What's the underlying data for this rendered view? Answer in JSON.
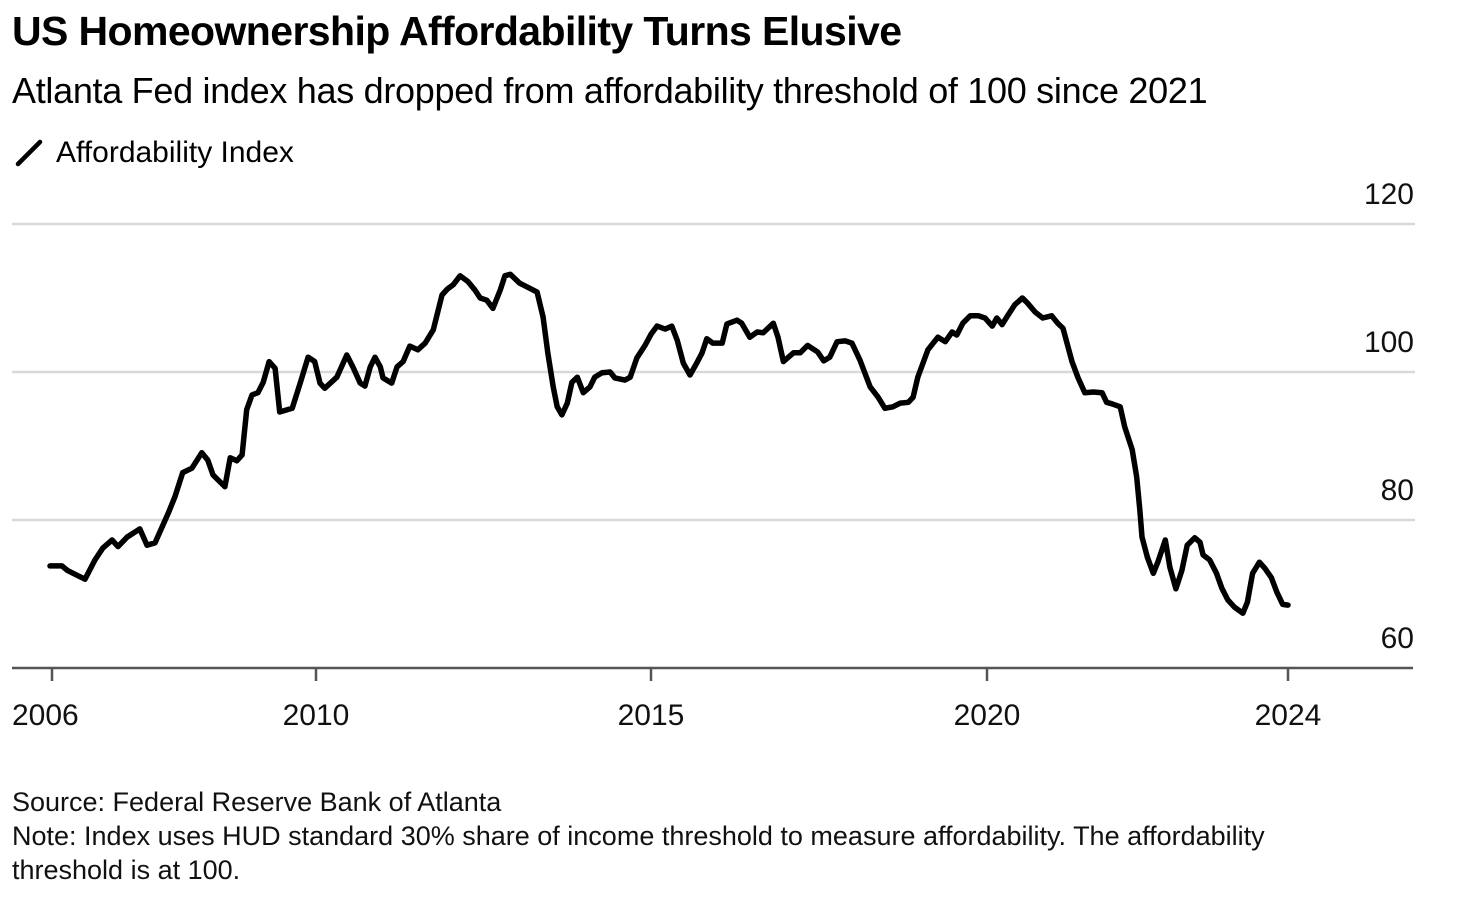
{
  "chart_data": {
    "type": "line",
    "title": "US Homeownership Affordability Turns Elusive",
    "subtitle": "Atlanta Fed index has dropped from affordability threshold of 100 since 2021",
    "xlabel": "",
    "ylabel": "",
    "xlim": [
      2006,
      2024
    ],
    "ylim": [
      60,
      120
    ],
    "grid": true,
    "y_axis_side": "right",
    "legend_position": "top-left",
    "x_ticks": [
      {
        "value": 2006,
        "label": "2006"
      },
      {
        "value": 2010,
        "label": "2010"
      },
      {
        "value": 2015,
        "label": "2015"
      },
      {
        "value": 2020,
        "label": "2020"
      },
      {
        "value": 2024,
        "label": "2024"
      }
    ],
    "y_ticks": [
      {
        "value": 120,
        "label": "120"
      },
      {
        "value": 100,
        "label": "100"
      },
      {
        "value": 80,
        "label": "80"
      },
      {
        "value": 60,
        "label": "60"
      }
    ],
    "series": [
      {
        "name": "Affordability Index",
        "color": "#000000",
        "points": [
          [
            2005.97,
            73.8
          ],
          [
            2006.15,
            73.8
          ],
          [
            2006.23,
            73.2
          ],
          [
            2006.32,
            72.8
          ],
          [
            2006.5,
            72.0
          ],
          [
            2006.65,
            74.6
          ],
          [
            2006.77,
            76.2
          ],
          [
            2006.91,
            77.3
          ],
          [
            2007.0,
            76.4
          ],
          [
            2007.14,
            77.7
          ],
          [
            2007.33,
            78.8
          ],
          [
            2007.44,
            76.6
          ],
          [
            2007.56,
            76.9
          ],
          [
            2007.67,
            79.1
          ],
          [
            2007.76,
            80.9
          ],
          [
            2007.86,
            83.1
          ],
          [
            2007.98,
            86.4
          ],
          [
            2008.12,
            87.0
          ],
          [
            2008.27,
            89.1
          ],
          [
            2008.36,
            88.1
          ],
          [
            2008.44,
            86.1
          ],
          [
            2008.62,
            84.5
          ],
          [
            2008.7,
            88.4
          ],
          [
            2008.8,
            88.0
          ],
          [
            2008.88,
            88.8
          ],
          [
            2008.95,
            94.9
          ],
          [
            2009.03,
            96.9
          ],
          [
            2009.12,
            97.2
          ],
          [
            2009.2,
            98.6
          ],
          [
            2009.29,
            101.4
          ],
          [
            2009.38,
            100.5
          ],
          [
            2009.45,
            94.6
          ],
          [
            2009.64,
            95.1
          ],
          [
            2009.76,
            98.5
          ],
          [
            2009.88,
            102.0
          ],
          [
            2009.98,
            101.4
          ],
          [
            2010.06,
            98.5
          ],
          [
            2010.13,
            97.8
          ],
          [
            2010.31,
            99.3
          ],
          [
            2010.46,
            102.3
          ],
          [
            2010.55,
            100.7
          ],
          [
            2010.66,
            98.5
          ],
          [
            2010.73,
            98.1
          ],
          [
            2010.81,
            100.7
          ],
          [
            2010.88,
            102.0
          ],
          [
            2010.96,
            100.7
          ],
          [
            2011.0,
            99.2
          ],
          [
            2011.13,
            98.5
          ],
          [
            2011.21,
            100.7
          ],
          [
            2011.3,
            101.4
          ],
          [
            2011.4,
            103.5
          ],
          [
            2011.52,
            103.0
          ],
          [
            2011.63,
            103.9
          ],
          [
            2011.75,
            105.7
          ],
          [
            2011.88,
            110.4
          ],
          [
            2011.96,
            111.2
          ],
          [
            2012.05,
            111.8
          ],
          [
            2012.15,
            113.0
          ],
          [
            2012.27,
            112.2
          ],
          [
            2012.37,
            111.1
          ],
          [
            2012.45,
            110.0
          ],
          [
            2012.55,
            109.7
          ],
          [
            2012.64,
            108.6
          ],
          [
            2012.75,
            111.1
          ],
          [
            2012.82,
            113.0
          ],
          [
            2012.9,
            113.2
          ],
          [
            2013.04,
            112.0
          ],
          [
            2013.15,
            111.5
          ],
          [
            2013.3,
            110.8
          ],
          [
            2013.39,
            107.4
          ],
          [
            2013.46,
            102.6
          ],
          [
            2013.54,
            98.0
          ],
          [
            2013.6,
            95.3
          ],
          [
            2013.67,
            94.2
          ],
          [
            2013.75,
            95.8
          ],
          [
            2013.82,
            98.6
          ],
          [
            2013.9,
            99.3
          ],
          [
            2013.99,
            97.2
          ],
          [
            2014.09,
            98.0
          ],
          [
            2014.16,
            99.3
          ],
          [
            2014.27,
            99.9
          ],
          [
            2014.39,
            100.0
          ],
          [
            2014.46,
            99.2
          ],
          [
            2014.61,
            98.9
          ],
          [
            2014.69,
            99.3
          ],
          [
            2014.79,
            101.9
          ],
          [
            2014.91,
            103.6
          ],
          [
            2015.0,
            105.1
          ],
          [
            2015.09,
            106.2
          ],
          [
            2015.21,
            105.8
          ],
          [
            2015.31,
            106.2
          ],
          [
            2015.39,
            104.3
          ],
          [
            2015.48,
            101.2
          ],
          [
            2015.58,
            99.6
          ],
          [
            2015.68,
            101.2
          ],
          [
            2015.76,
            102.6
          ],
          [
            2015.83,
            104.5
          ],
          [
            2015.92,
            103.9
          ],
          [
            2016.06,
            103.9
          ],
          [
            2016.13,
            106.5
          ],
          [
            2016.28,
            107.0
          ],
          [
            2016.35,
            106.6
          ],
          [
            2016.47,
            104.7
          ],
          [
            2016.58,
            105.4
          ],
          [
            2016.67,
            105.3
          ],
          [
            2016.82,
            106.6
          ],
          [
            2016.89,
            104.7
          ],
          [
            2016.97,
            101.4
          ],
          [
            2017.12,
            102.6
          ],
          [
            2017.22,
            102.6
          ],
          [
            2017.33,
            103.6
          ],
          [
            2017.48,
            102.7
          ],
          [
            2017.57,
            101.5
          ],
          [
            2017.66,
            102.0
          ],
          [
            2017.77,
            104.1
          ],
          [
            2017.89,
            104.2
          ],
          [
            2017.99,
            103.9
          ],
          [
            2018.11,
            101.6
          ],
          [
            2018.26,
            98.0
          ],
          [
            2018.38,
            96.6
          ],
          [
            2018.48,
            95.1
          ],
          [
            2018.6,
            95.3
          ],
          [
            2018.71,
            95.8
          ],
          [
            2018.83,
            95.9
          ],
          [
            2018.9,
            96.6
          ],
          [
            2018.97,
            99.3
          ],
          [
            2019.12,
            103.0
          ],
          [
            2019.27,
            104.7
          ],
          [
            2019.38,
            104.1
          ],
          [
            2019.48,
            105.4
          ],
          [
            2019.55,
            105.0
          ],
          [
            2019.64,
            106.6
          ],
          [
            2019.75,
            107.6
          ],
          [
            2019.87,
            107.6
          ],
          [
            2019.97,
            107.3
          ],
          [
            2020.07,
            106.2
          ],
          [
            2020.13,
            107.3
          ],
          [
            2020.2,
            106.4
          ],
          [
            2020.28,
            107.7
          ],
          [
            2020.37,
            109.1
          ],
          [
            2020.47,
            110.0
          ],
          [
            2020.54,
            109.3
          ],
          [
            2020.64,
            108.1
          ],
          [
            2020.74,
            107.3
          ],
          [
            2020.86,
            107.6
          ],
          [
            2020.94,
            106.6
          ],
          [
            2021.01,
            105.9
          ],
          [
            2021.13,
            101.4
          ],
          [
            2021.21,
            99.2
          ],
          [
            2021.3,
            97.2
          ],
          [
            2021.41,
            97.3
          ],
          [
            2021.53,
            97.2
          ],
          [
            2021.59,
            95.9
          ],
          [
            2021.66,
            95.7
          ],
          [
            2021.77,
            95.3
          ],
          [
            2021.83,
            92.6
          ],
          [
            2021.93,
            89.5
          ],
          [
            2021.99,
            85.8
          ],
          [
            2022.03,
            81.4
          ],
          [
            2022.06,
            77.7
          ],
          [
            2022.13,
            75.0
          ],
          [
            2022.21,
            72.8
          ],
          [
            2022.27,
            74.3
          ],
          [
            2022.37,
            77.3
          ],
          [
            2022.43,
            73.6
          ],
          [
            2022.51,
            70.7
          ],
          [
            2022.59,
            73.2
          ],
          [
            2022.66,
            76.6
          ],
          [
            2022.76,
            77.6
          ],
          [
            2022.83,
            77.0
          ],
          [
            2022.87,
            75.3
          ],
          [
            2022.96,
            74.6
          ],
          [
            2023.05,
            72.8
          ],
          [
            2023.12,
            70.8
          ],
          [
            2023.2,
            69.2
          ],
          [
            2023.29,
            68.2
          ],
          [
            2023.4,
            67.4
          ],
          [
            2023.46,
            68.9
          ],
          [
            2023.53,
            72.8
          ],
          [
            2023.62,
            74.3
          ],
          [
            2023.69,
            73.5
          ],
          [
            2023.78,
            72.2
          ],
          [
            2023.85,
            70.3
          ],
          [
            2023.93,
            68.6
          ],
          [
            2024.0,
            68.5
          ]
        ]
      }
    ],
    "annotations": []
  },
  "legend": {
    "icon": "line-swatch-icon",
    "label": "Affordability Index"
  },
  "footer": {
    "source": "Source: Federal Reserve Bank of Atlanta",
    "note_line1": "Note: Index uses HUD standard 30% share of income threshold to measure affordability. The affordability",
    "note_line2": "threshold is at 100."
  },
  "colors": {
    "line": "#000000",
    "grid": "#d9d9d9",
    "axis": "#555555",
    "text": "#111111"
  }
}
